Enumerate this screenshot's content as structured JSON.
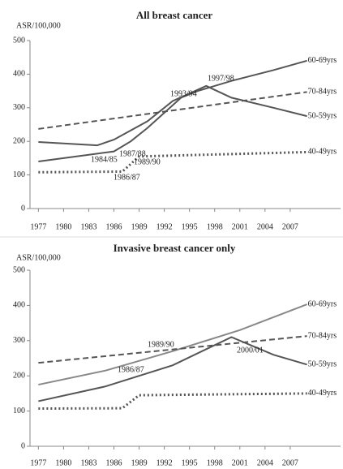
{
  "chart_data": [
    {
      "type": "line",
      "title": "All breast cancer",
      "y_label": "ASR/100,000",
      "xlim": [
        1976,
        2013
      ],
      "ylim": [
        0,
        500
      ],
      "xticks": [
        1977,
        1980,
        1983,
        1986,
        1989,
        1992,
        1995,
        1998,
        2001,
        2004,
        2007
      ],
      "yticks": [
        0,
        100,
        200,
        300,
        400,
        500
      ],
      "series": [
        {
          "name": "60-69yrs",
          "color": "#555555",
          "style": "solid",
          "x": [
            1977,
            1983,
            1986,
            1988,
            1990,
            1992,
            1994,
            1996,
            2000,
            2005,
            2009
          ],
          "values": [
            140,
            160,
            170,
            200,
            240,
            285,
            330,
            350,
            380,
            412,
            440
          ]
        },
        {
          "name": "70-84yrs",
          "color": "#555555",
          "style": "dashed",
          "x": [
            1977,
            2009
          ],
          "values": [
            237,
            347
          ]
        },
        {
          "name": "50-59yrs",
          "color": "#555555",
          "style": "solid",
          "x": [
            1977,
            1984,
            1986,
            1990,
            1993,
            1997,
            2000,
            2005,
            2009
          ],
          "values": [
            198,
            188,
            205,
            260,
            320,
            365,
            330,
            300,
            275
          ]
        },
        {
          "name": "40-49yrs",
          "color": "#555555",
          "style": "dotted",
          "x": [
            1977,
            1987,
            1989,
            2009
          ],
          "values": [
            108,
            110,
            155,
            168
          ]
        }
      ],
      "annotations": [
        "1984/85",
        "1987/88",
        "1989/90",
        "1986/87",
        "1993/94",
        "1997/98"
      ]
    },
    {
      "type": "line",
      "title": "Invasive breast cancer only",
      "y_label": "ASR/100,000",
      "xlim": [
        1976,
        2013
      ],
      "ylim": [
        0,
        500
      ],
      "xticks": [
        1977,
        1980,
        1983,
        1986,
        1989,
        1992,
        1995,
        1998,
        2001,
        2004,
        2007
      ],
      "yticks": [
        0,
        100,
        200,
        300,
        400,
        500
      ],
      "series": [
        {
          "name": "60-69yrs",
          "color": "#888888",
          "style": "solid",
          "x": [
            1977,
            1985,
            1993,
            2001,
            2009
          ],
          "values": [
            175,
            215,
            270,
            330,
            403
          ]
        },
        {
          "name": "70-84yrs",
          "color": "#555555",
          "style": "dashed",
          "x": [
            1977,
            2009
          ],
          "values": [
            237,
            313
          ]
        },
        {
          "name": "50-59yrs",
          "color": "#555555",
          "style": "solid",
          "x": [
            1977,
            1985,
            1993,
            2000,
            2005,
            2009
          ],
          "values": [
            128,
            170,
            230,
            310,
            260,
            232
          ]
        },
        {
          "name": "40-49yrs",
          "color": "#555555",
          "style": "dotted",
          "x": [
            1977,
            1987,
            1989,
            2009
          ],
          "values": [
            107,
            108,
            145,
            150
          ]
        }
      ],
      "annotations": [
        "1989/90",
        "1986/87",
        "2000/01"
      ]
    }
  ]
}
